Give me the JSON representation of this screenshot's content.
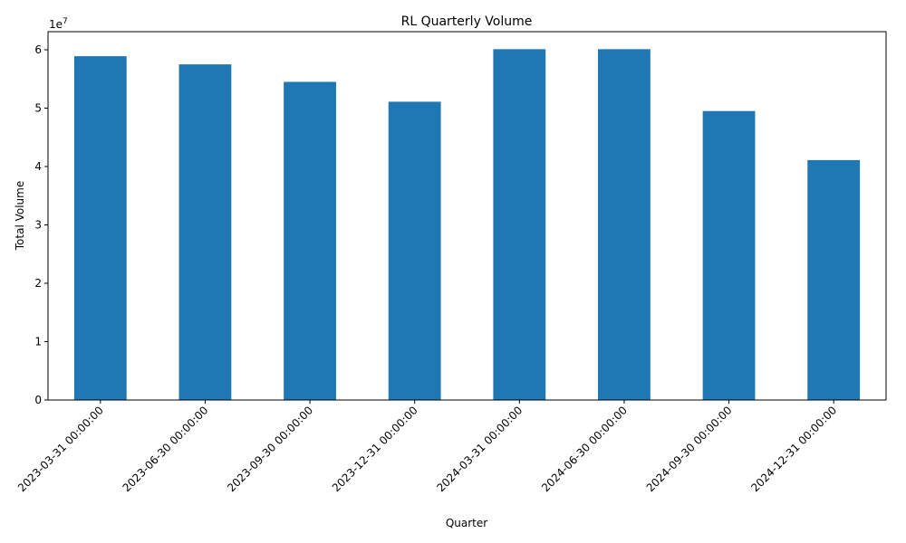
{
  "chart_data": {
    "type": "bar",
    "title": "RL Quarterly Volume",
    "xlabel": "Quarter",
    "ylabel": "Total Volume",
    "y_offset_label": "1e7",
    "categories": [
      "2023-03-31 00:00:00",
      "2023-06-30 00:00:00",
      "2023-09-30 00:00:00",
      "2023-12-31 00:00:00",
      "2024-03-31 00:00:00",
      "2024-06-30 00:00:00",
      "2024-09-30 00:00:00",
      "2024-12-31 00:00:00"
    ],
    "values": [
      58900000,
      57500000,
      54500000,
      51100000,
      60100000,
      60100000,
      49500000,
      41100000
    ],
    "ylim": [
      0,
      63100000
    ],
    "yticks": [
      0,
      10000000,
      20000000,
      30000000,
      40000000,
      50000000,
      60000000
    ],
    "ytick_labels": [
      "0",
      "1",
      "2",
      "3",
      "4",
      "5",
      "6"
    ],
    "bar_color": "#1f77b4",
    "grid": false,
    "legend": "none"
  }
}
